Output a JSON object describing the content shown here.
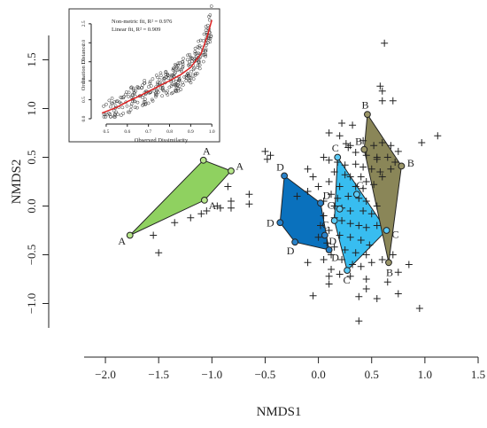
{
  "chart_data": [
    {
      "type": "scatter",
      "title": "",
      "xlabel": "NMDS1",
      "ylabel": "NMDS2",
      "xlim": [
        -2.2,
        1.5
      ],
      "ylim": [
        -1.25,
        1.75
      ],
      "xticks": [
        -2.0,
        -1.5,
        -1.0,
        -0.5,
        0.0,
        0.5,
        1.0,
        1.5
      ],
      "yticks": [
        -1.0,
        -0.5,
        0.0,
        0.5,
        1.0,
        1.5
      ],
      "xtick_labels": [
        "−2.0",
        "−1.5",
        "−1.0",
        "−0.5",
        "0.0",
        "0.5",
        "1.0",
        "1.5"
      ],
      "ytick_labels": [
        "−1.0",
        "−0.5",
        "0.0",
        "0.5",
        "1.0",
        "1.5"
      ],
      "grid": false,
      "species_points": [
        [
          0.62,
          1.67
        ],
        [
          0.58,
          1.23
        ],
        [
          0.6,
          1.18
        ],
        [
          0.6,
          1.08
        ],
        [
          0.7,
          1.08
        ],
        [
          0.22,
          0.85
        ],
        [
          0.32,
          0.83
        ],
        [
          0.1,
          0.75
        ],
        [
          0.2,
          0.72
        ],
        [
          0.26,
          0.64
        ],
        [
          0.42,
          0.67
        ],
        [
          0.52,
          0.62
        ],
        [
          0.6,
          0.65
        ],
        [
          0.68,
          0.62
        ],
        [
          0.75,
          0.56
        ],
        [
          1.12,
          0.72
        ],
        [
          0.97,
          0.65
        ],
        [
          0.28,
          0.6
        ],
        [
          0.35,
          0.55
        ],
        [
          0.45,
          0.52
        ],
        [
          0.55,
          0.5
        ],
        [
          0.65,
          0.5
        ],
        [
          0.72,
          0.45
        ],
        [
          -0.5,
          0.56
        ],
        [
          -0.45,
          0.52
        ],
        [
          -0.48,
          0.48
        ],
        [
          0.05,
          0.5
        ],
        [
          0.1,
          0.47
        ],
        [
          0.18,
          0.45
        ],
        [
          0.25,
          0.42
        ],
        [
          0.35,
          0.43
        ],
        [
          0.42,
          0.4
        ],
        [
          0.5,
          0.38
        ],
        [
          0.58,
          0.35
        ],
        [
          0.15,
          0.35
        ],
        [
          0.25,
          0.32
        ],
        [
          0.3,
          0.3
        ],
        [
          0.4,
          0.3
        ],
        [
          0.45,
          0.25
        ],
        [
          0.52,
          0.22
        ],
        [
          0.1,
          0.25
        ],
        [
          0.2,
          0.2
        ],
        [
          0.35,
          0.2
        ],
        [
          0.42,
          0.18
        ],
        [
          0.12,
          0.12
        ],
        [
          0.18,
          0.08
        ],
        [
          0.28,
          0.1
        ],
        [
          0.38,
          0.08
        ],
        [
          0.45,
          0.05
        ],
        [
          -0.1,
          0.38
        ],
        [
          -0.05,
          0.3
        ],
        [
          0.0,
          0.2
        ],
        [
          -0.1,
          0.15
        ],
        [
          -0.2,
          0.1
        ],
        [
          0.05,
          0.05
        ],
        [
          0.15,
          0.0
        ],
        [
          0.22,
          -0.02
        ],
        [
          0.3,
          -0.05
        ],
        [
          0.42,
          -0.05
        ],
        [
          0.5,
          -0.08
        ],
        [
          0.55,
          0.0
        ],
        [
          0.05,
          -0.1
        ],
        [
          0.15,
          -0.12
        ],
        [
          0.22,
          -0.15
        ],
        [
          0.3,
          -0.18
        ],
        [
          0.38,
          -0.2
        ],
        [
          0.45,
          -0.22
        ],
        [
          0.55,
          -0.2
        ],
        [
          0.02,
          -0.2
        ],
        [
          0.1,
          -0.25
        ],
        [
          0.2,
          -0.3
        ],
        [
          0.3,
          -0.32
        ],
        [
          0.4,
          -0.35
        ],
        [
          0.48,
          -0.4
        ],
        [
          0.0,
          -0.32
        ],
        [
          0.08,
          -0.38
        ],
        [
          0.15,
          -0.42
        ],
        [
          0.25,
          -0.45
        ],
        [
          0.35,
          -0.48
        ],
        [
          0.45,
          -0.5
        ],
        [
          0.05,
          -0.55
        ],
        [
          0.12,
          -0.5
        ],
        [
          0.22,
          -0.55
        ],
        [
          0.32,
          -0.6
        ],
        [
          0.4,
          -0.62
        ],
        [
          0.5,
          -0.58
        ],
        [
          0.6,
          -0.55
        ],
        [
          0.7,
          -0.5
        ],
        [
          0.85,
          -0.6
        ],
        [
          0.12,
          -0.65
        ],
        [
          0.2,
          -0.7
        ],
        [
          0.3,
          -0.72
        ],
        [
          0.45,
          -0.75
        ],
        [
          0.75,
          -0.68
        ],
        [
          0.65,
          -0.78
        ],
        [
          -0.05,
          -0.92
        ],
        [
          0.38,
          -0.93
        ],
        [
          0.55,
          -0.95
        ],
        [
          0.75,
          -0.9
        ],
        [
          0.95,
          -1.05
        ],
        [
          0.38,
          -1.18
        ],
        [
          0.1,
          -0.72
        ],
        [
          -0.1,
          -0.58
        ],
        [
          -0.85,
          0.2
        ],
        [
          -0.82,
          0.05
        ],
        [
          -0.95,
          0.0
        ],
        [
          -1.05,
          -0.05
        ],
        [
          -1.2,
          -0.12
        ],
        [
          -1.35,
          -0.17
        ],
        [
          -1.55,
          -0.3
        ],
        [
          -1.5,
          -0.48
        ],
        [
          -0.65,
          0.12
        ],
        [
          -0.65,
          0.02
        ],
        [
          -0.82,
          -0.02
        ],
        [
          -0.92,
          -0.02
        ],
        [
          -1.1,
          -0.08
        ],
        [
          0.3,
          0.62
        ],
        [
          0.55,
          0.48
        ],
        [
          0.68,
          0.38
        ],
        [
          0.6,
          0.3
        ],
        [
          0.1,
          -0.8
        ],
        [
          0.45,
          -0.85
        ]
      ],
      "groups": [
        {
          "name": "A",
          "color": "#8fd160",
          "point_color": "#b6e68a",
          "points": [
            [
              -1.08,
              0.47
            ],
            [
              -0.82,
              0.36
            ],
            [
              -1.07,
              0.06
            ],
            [
              -1.77,
              -0.3
            ]
          ]
        },
        {
          "name": "D",
          "color": "#0a71bd",
          "point_color": "#2a82c9",
          "points": [
            [
              -0.32,
              0.31
            ],
            [
              0.02,
              0.03
            ],
            [
              0.1,
              -0.45
            ],
            [
              -0.22,
              -0.37
            ],
            [
              -0.36,
              -0.17
            ],
            [
              0.06,
              -0.3
            ]
          ]
        },
        {
          "name": "C",
          "color": "#38bdf0",
          "point_color": "#5bcaf5",
          "points": [
            [
              0.18,
              0.5
            ],
            [
              0.36,
              0.12
            ],
            [
              0.64,
              -0.25
            ],
            [
              0.27,
              -0.66
            ],
            [
              0.15,
              -0.15
            ],
            [
              0.2,
              -0.03
            ]
          ]
        },
        {
          "name": "B",
          "color": "#8a8658",
          "point_color": "#9b9668",
          "points": [
            [
              0.46,
              0.94
            ],
            [
              0.43,
              0.58
            ],
            [
              0.78,
              0.41
            ],
            [
              0.66,
              -0.58
            ]
          ]
        }
      ],
      "inset": {
        "type": "scatter",
        "annotations": [
          "Non-metric fit, R² = 0.976",
          "Linear fit, R² = 0.909"
        ],
        "xlabel": "Observed Dissimilarity",
        "ylabel": "Ordination Distance",
        "xlim": [
          0.45,
          1.02
        ],
        "ylim": [
          0.0,
          2.8
        ],
        "xticks": [
          0.5,
          0.6,
          0.7,
          0.8,
          0.9,
          1.0
        ],
        "yticks": [
          0.0,
          0.5,
          1.0,
          1.5,
          2.0,
          2.5
        ],
        "xtick_labels": [
          "0.5",
          "0.6",
          "0.7",
          "0.8",
          "0.9",
          "1.0"
        ],
        "ytick_labels": [
          "0.0",
          "0.5",
          "1.0",
          "1.5",
          "2.0",
          "2.5"
        ],
        "fit_points": [
          [
            0.48,
            0.15
          ],
          [
            0.55,
            0.3
          ],
          [
            0.6,
            0.45
          ],
          [
            0.65,
            0.58
          ],
          [
            0.7,
            0.72
          ],
          [
            0.75,
            0.86
          ],
          [
            0.8,
            1.0
          ],
          [
            0.85,
            1.15
          ],
          [
            0.9,
            1.35
          ],
          [
            0.95,
            1.72
          ],
          [
            0.98,
            2.2
          ],
          [
            1.0,
            2.6
          ]
        ]
      }
    }
  ]
}
